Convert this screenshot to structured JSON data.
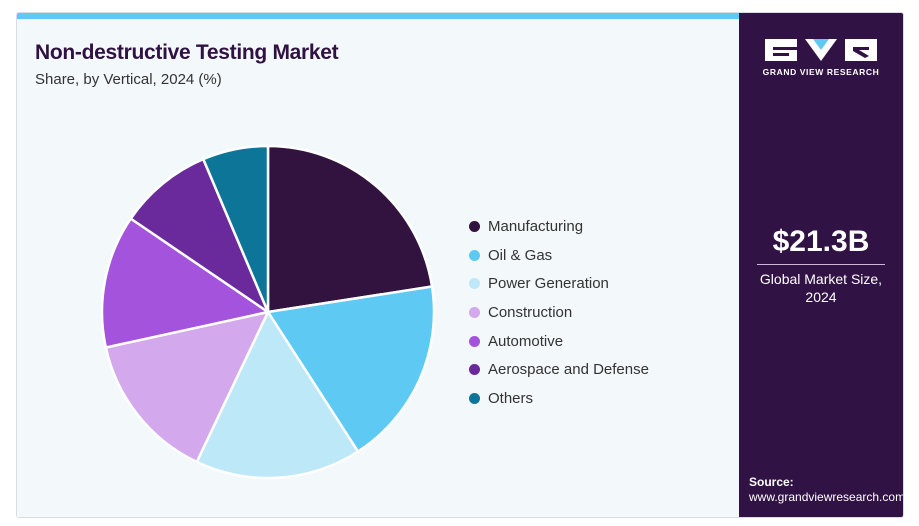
{
  "header": {
    "title": "Non-destructive Testing Market",
    "subtitle": "Share, by Vertical, 2024 (%)"
  },
  "colors": {
    "accent_bar": "#5ecaf4",
    "panel": "#311244",
    "title": "#2f1142"
  },
  "chart_data": {
    "type": "pie",
    "categories": [
      "Manufacturing",
      "Oil & Gas",
      "Power Generation",
      "Construction",
      "Automotive",
      "Aerospace and Defense",
      "Others"
    ],
    "values": [
      23.0,
      18.7,
      16.5,
      14.8,
      13.2,
      9.3,
      6.5
    ],
    "colors": [
      "#32123f",
      "#5ecaf4",
      "#bde8f8",
      "#d4a8ec",
      "#a453dc",
      "#6b2a9b",
      "#0c7598"
    ],
    "legend_position": "right"
  },
  "side_panel": {
    "brand": "GRAND VIEW RESEARCH",
    "market_size": "$21.3B",
    "market_size_label_line1": "Global Market Size,",
    "market_size_label_line2": "2024",
    "source_label": "Source:",
    "source_url": "www.grandviewresearch.com"
  }
}
